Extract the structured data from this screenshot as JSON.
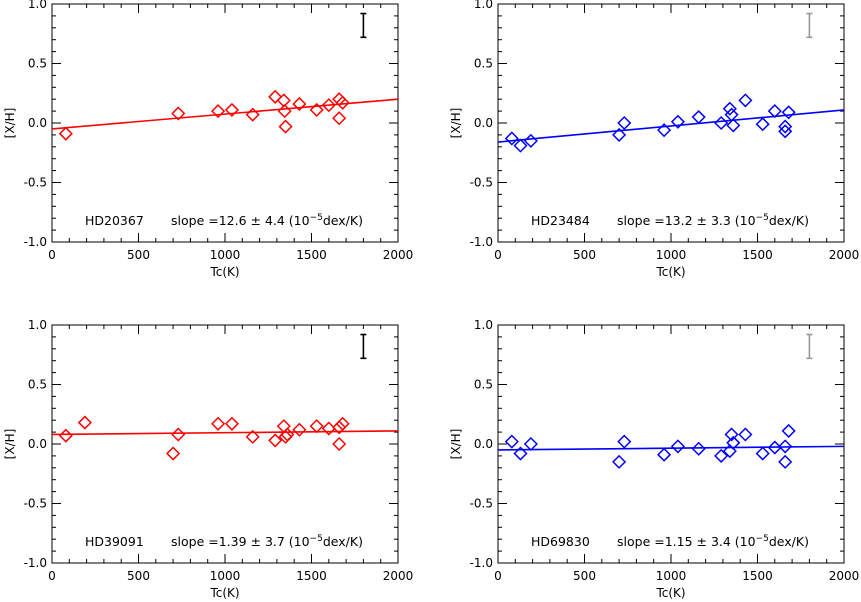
{
  "chart_data": [
    {
      "type": "scatter",
      "star": "HD20367",
      "slope_text": "slope =12.6 ± 4.4 (10",
      "unit_exp": "−5",
      "unit_tail": "dex/K)",
      "xlabel": "Tc(K)",
      "ylabel": "[X/H]",
      "xlim": [
        0,
        2000
      ],
      "ylim": [
        -1.0,
        1.0
      ],
      "xticks": [
        "0",
        "500",
        "1000",
        "1500",
        "2000"
      ],
      "yticks": [
        "-1.0",
        "-0.5",
        "0.0",
        "0.5",
        "1.0"
      ],
      "color": "#ff0000",
      "errbar_color": "#000000",
      "errbar": {
        "x": 1800,
        "y_low": 0.72,
        "y_high": 0.92
      },
      "fit": {
        "x": [
          0,
          2000
        ],
        "y": [
          -0.05,
          0.2
        ]
      },
      "points": {
        "x": [
          80,
          730,
          960,
          1040,
          1160,
          1290,
          1340,
          1345,
          1350,
          1430,
          1530,
          1600,
          1660,
          1660,
          1680
        ],
        "y": [
          -0.09,
          0.08,
          0.1,
          0.11,
          0.07,
          0.22,
          0.19,
          0.1,
          -0.03,
          0.16,
          0.11,
          0.15,
          0.2,
          0.04,
          0.17
        ]
      }
    },
    {
      "type": "scatter",
      "star": "HD23484",
      "slope_text": "slope =13.2 ± 3.3 (10",
      "unit_exp": "−5",
      "unit_tail": "dex/K)",
      "xlabel": "Tc(K)",
      "ylabel": "[X/H]",
      "xlim": [
        0,
        2000
      ],
      "ylim": [
        -1.0,
        1.0
      ],
      "xticks": [
        "0",
        "500",
        "1000",
        "1500",
        "2000"
      ],
      "yticks": [
        "-1.0",
        "-0.5",
        "0.0",
        "0.5",
        "1.0"
      ],
      "color": "#0000ff",
      "errbar_color": "#999999",
      "errbar": {
        "x": 1800,
        "y_low": 0.72,
        "y_high": 0.92
      },
      "fit": {
        "x": [
          0,
          2000
        ],
        "y": [
          -0.16,
          0.11
        ]
      },
      "points": {
        "x": [
          80,
          130,
          190,
          700,
          730,
          960,
          1040,
          1160,
          1290,
          1340,
          1350,
          1360,
          1430,
          1530,
          1600,
          1660,
          1660,
          1680
        ],
        "y": [
          -0.13,
          -0.19,
          -0.15,
          -0.1,
          0.0,
          -0.06,
          0.01,
          0.05,
          0.0,
          0.12,
          0.07,
          -0.02,
          0.19,
          -0.01,
          0.1,
          -0.03,
          -0.07,
          0.09
        ]
      }
    },
    {
      "type": "scatter",
      "star": "HD39091",
      "slope_text": "slope =1.39 ± 3.7 (10",
      "unit_exp": "−5",
      "unit_tail": "dex/K)",
      "xlabel": "Tc(K)",
      "ylabel": "[X/H]",
      "xlim": [
        0,
        2000
      ],
      "ylim": [
        -1.0,
        1.0
      ],
      "xticks": [
        "0",
        "500",
        "1000",
        "1500",
        "2000"
      ],
      "yticks": [
        "-1.0",
        "-0.5",
        "0.0",
        "0.5",
        "1.0"
      ],
      "color": "#ff0000",
      "errbar_color": "#000000",
      "errbar": {
        "x": 1800,
        "y_low": 0.72,
        "y_high": 0.92
      },
      "fit": {
        "x": [
          0,
          2000
        ],
        "y": [
          0.08,
          0.11
        ]
      },
      "points": {
        "x": [
          80,
          190,
          700,
          730,
          960,
          1040,
          1160,
          1290,
          1340,
          1350,
          1360,
          1430,
          1530,
          1600,
          1660,
          1660,
          1680
        ],
        "y": [
          0.07,
          0.18,
          -0.08,
          0.08,
          0.17,
          0.17,
          0.06,
          0.03,
          0.15,
          0.06,
          0.08,
          0.12,
          0.15,
          0.13,
          0.14,
          0.0,
          0.17
        ]
      }
    },
    {
      "type": "scatter",
      "star": "HD69830",
      "slope_text": "slope =1.15 ± 3.4 (10",
      "unit_exp": "−5",
      "unit_tail": "dex/K)",
      "xlabel": "Tc(K)",
      "ylabel": "[X/H]",
      "xlim": [
        0,
        2000
      ],
      "ylim": [
        -1.0,
        1.0
      ],
      "xticks": [
        "0",
        "500",
        "1000",
        "1500",
        "2000"
      ],
      "yticks": [
        "-1.0",
        "-0.5",
        "0.0",
        "0.5",
        "1.0"
      ],
      "color": "#0000ff",
      "errbar_color": "#999999",
      "errbar": {
        "x": 1800,
        "y_low": 0.72,
        "y_high": 0.92
      },
      "fit": {
        "x": [
          0,
          2000
        ],
        "y": [
          -0.05,
          -0.02
        ]
      },
      "points": {
        "x": [
          80,
          130,
          190,
          700,
          730,
          960,
          1040,
          1160,
          1290,
          1340,
          1350,
          1360,
          1430,
          1530,
          1600,
          1660,
          1660,
          1680
        ],
        "y": [
          0.02,
          -0.08,
          0.0,
          -0.15,
          0.02,
          -0.09,
          -0.02,
          -0.04,
          -0.1,
          -0.06,
          0.08,
          0.01,
          0.08,
          -0.08,
          -0.03,
          -0.02,
          -0.15,
          0.11
        ]
      }
    }
  ]
}
